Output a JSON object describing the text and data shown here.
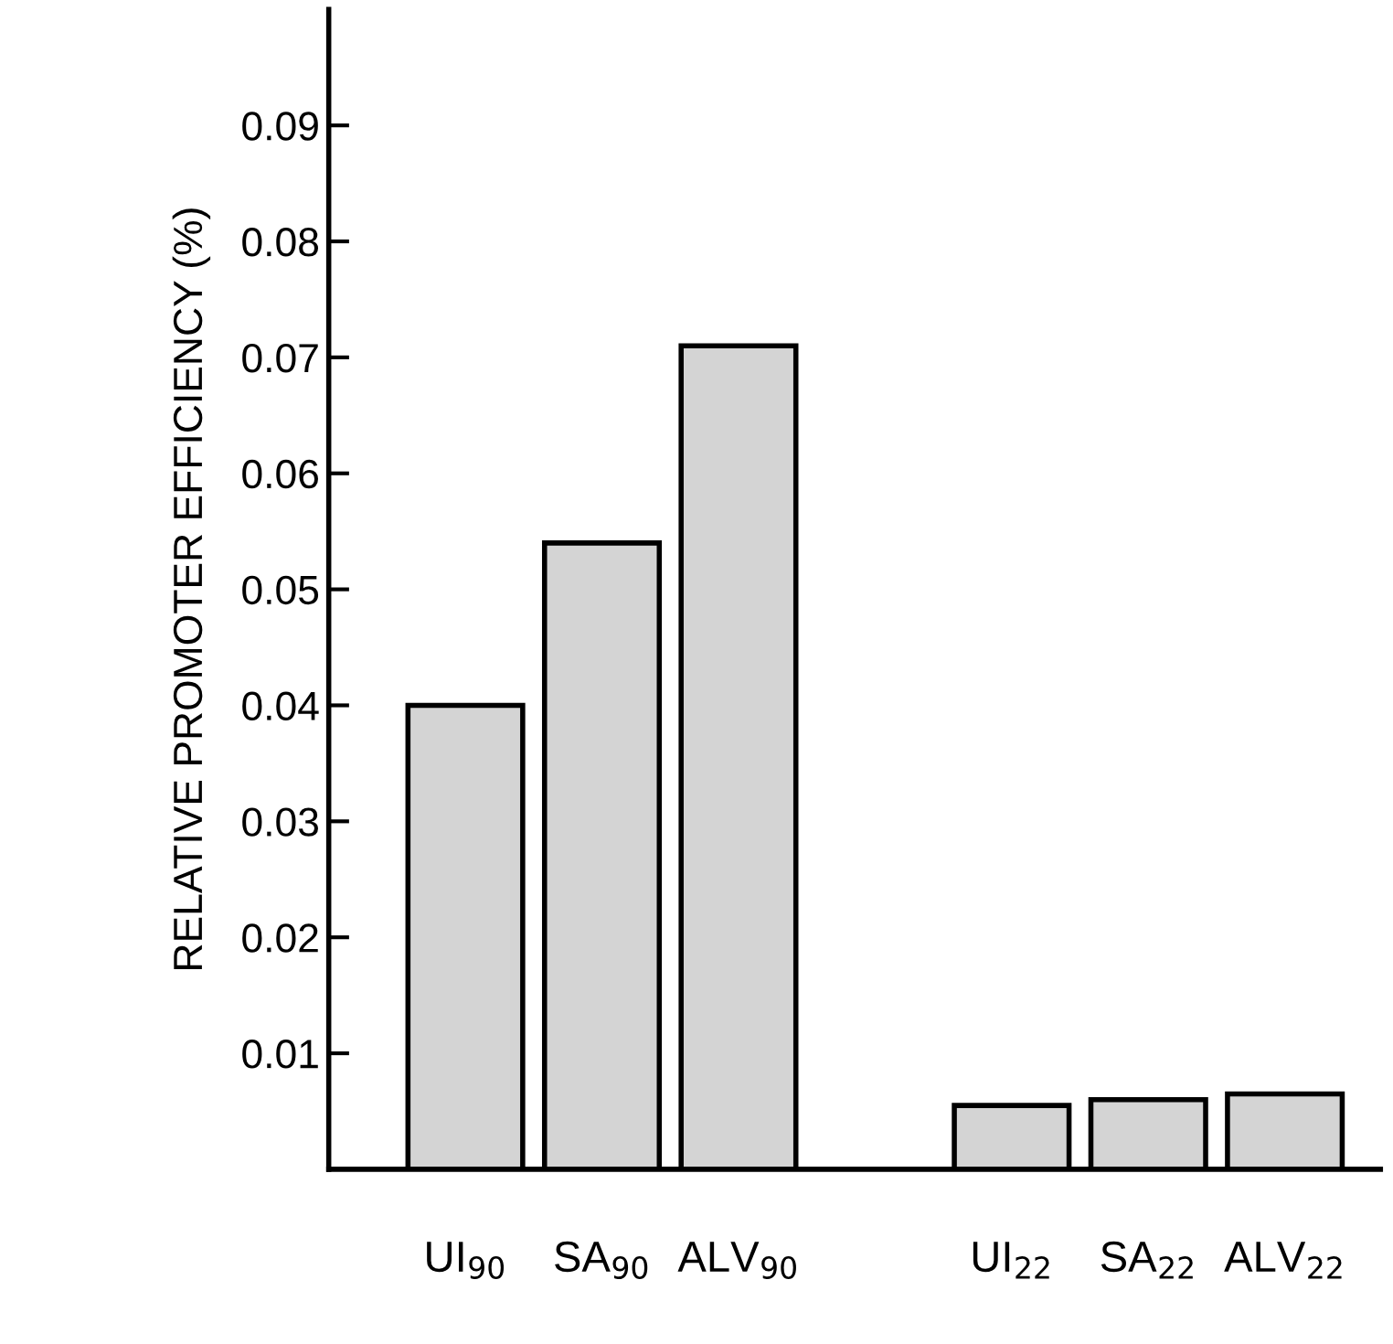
{
  "chart_data": {
    "type": "bar",
    "ylabel": "RELATIVE PROMOTER EFFICIENCY (%)",
    "categories": [
      "UI$_{90}$",
      "SA$_{90}$",
      "ALV$_{90}$",
      null,
      "UI$_{22}$",
      "SA$_{22}$",
      "ALV$_{22}$"
    ],
    "values": [
      0.04,
      0.054,
      0.071,
      null,
      0.0055,
      0.006,
      0.0065
    ],
    "color": "#d4d4d4",
    "ylim": [
      0,
      0.1
    ],
    "yticks": [
      0.01,
      0.02,
      0.03,
      0.04,
      0.05,
      0.06,
      0.07,
      0.08,
      0.09
    ],
    "grid": false
  }
}
